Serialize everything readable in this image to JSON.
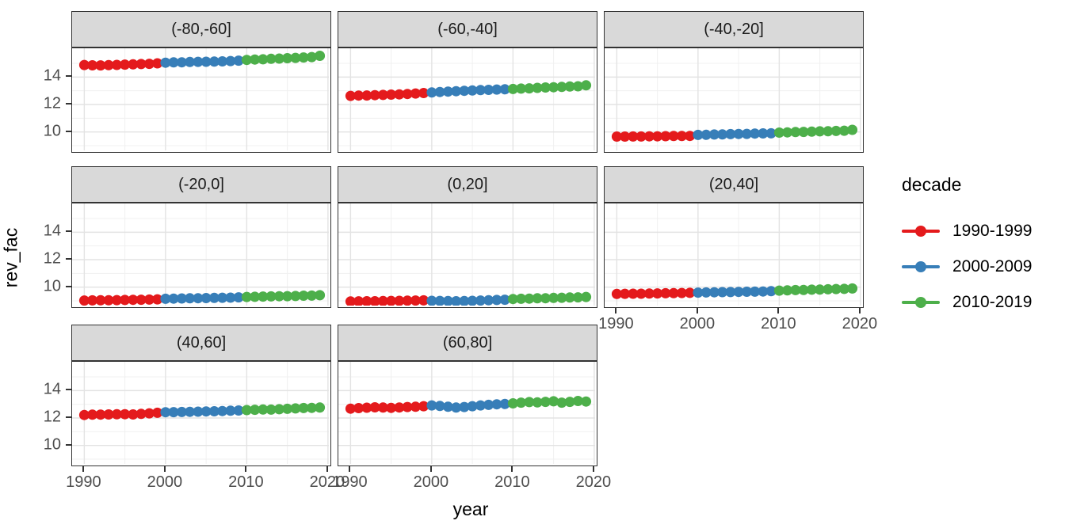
{
  "chart_data": {
    "type": "scatter",
    "title": "",
    "xlabel": "year",
    "ylabel": "rev_fac",
    "x_ticks": [
      1990,
      2000,
      2010,
      2020
    ],
    "y_ticks": [
      14,
      12,
      10
    ],
    "x_minor_ticks": [
      1995,
      2005,
      2015
    ],
    "y_minor_ticks": [
      9,
      11,
      13,
      15
    ],
    "xlim": [
      1988.5,
      2020.5
    ],
    "ylim": [
      8.42,
      16.1
    ],
    "grid": "on",
    "legend": {
      "title": "decade",
      "position": "right",
      "entries": [
        {
          "label": "1990-1999",
          "color": "#E41A1C"
        },
        {
          "label": "2000-2009",
          "color": "#377EB8"
        },
        {
          "label": "2010-2019",
          "color": "#4DAF4A"
        }
      ]
    },
    "years": [
      1990,
      1991,
      1992,
      1993,
      1994,
      1995,
      1996,
      1997,
      1998,
      1999,
      2000,
      2001,
      2002,
      2003,
      2004,
      2005,
      2006,
      2007,
      2008,
      2009,
      2010,
      2011,
      2012,
      2013,
      2014,
      2015,
      2016,
      2017,
      2018,
      2019
    ],
    "facets": [
      {
        "label": "(-80,-60]",
        "values": [
          14.88,
          14.86,
          14.85,
          14.87,
          14.89,
          14.91,
          14.93,
          14.95,
          14.97,
          15.0,
          15.05,
          15.07,
          15.08,
          15.1,
          15.11,
          15.12,
          15.13,
          15.15,
          15.17,
          15.2,
          15.25,
          15.28,
          15.3,
          15.33,
          15.35,
          15.38,
          15.4,
          15.43,
          15.46,
          15.55
        ]
      },
      {
        "label": "(-60,-40]",
        "values": [
          12.63,
          12.65,
          12.66,
          12.68,
          12.7,
          12.72,
          12.74,
          12.77,
          12.8,
          12.84,
          12.88,
          12.91,
          12.94,
          12.97,
          13.0,
          13.02,
          13.05,
          13.07,
          13.09,
          13.11,
          13.13,
          13.16,
          13.18,
          13.21,
          13.24,
          13.26,
          13.28,
          13.31,
          13.33,
          13.4
        ]
      },
      {
        "label": "(-40,-20]",
        "values": [
          9.66,
          9.66,
          9.67,
          9.67,
          9.68,
          9.68,
          9.69,
          9.7,
          9.7,
          9.71,
          9.78,
          9.79,
          9.81,
          9.82,
          9.84,
          9.85,
          9.86,
          9.88,
          9.89,
          9.9,
          9.95,
          9.97,
          9.99,
          10.0,
          10.02,
          10.04,
          10.05,
          10.07,
          10.09,
          10.15
        ]
      },
      {
        "label": "(-20,0]",
        "values": [
          9.02,
          9.03,
          9.04,
          9.04,
          9.05,
          9.06,
          9.07,
          9.08,
          9.09,
          9.11,
          9.15,
          9.16,
          9.17,
          9.18,
          9.19,
          9.2,
          9.21,
          9.22,
          9.23,
          9.25,
          9.28,
          9.29,
          9.31,
          9.32,
          9.33,
          9.34,
          9.35,
          9.37,
          9.38,
          9.41
        ]
      },
      {
        "label": "(0,20]",
        "values": [
          8.95,
          8.96,
          8.97,
          8.97,
          8.98,
          8.99,
          9.0,
          9.01,
          9.02,
          9.03,
          9.0,
          8.99,
          8.98,
          8.97,
          8.98,
          9.0,
          9.02,
          9.04,
          9.06,
          9.08,
          9.13,
          9.15,
          9.16,
          9.18,
          9.19,
          9.21,
          9.22,
          9.24,
          9.25,
          9.28
        ]
      },
      {
        "label": "(20,40]",
        "values": [
          9.5,
          9.51,
          9.52,
          9.52,
          9.53,
          9.54,
          9.55,
          9.56,
          9.57,
          9.58,
          9.6,
          9.61,
          9.62,
          9.63,
          9.64,
          9.65,
          9.66,
          9.67,
          9.68,
          9.7,
          9.74,
          9.76,
          9.78,
          9.79,
          9.81,
          9.82,
          9.84,
          9.86,
          9.87,
          9.9
        ]
      },
      {
        "label": "(40,60]",
        "values": [
          12.22,
          12.24,
          12.25,
          12.26,
          12.27,
          12.28,
          12.26,
          12.3,
          12.34,
          12.38,
          12.42,
          12.43,
          12.44,
          12.45,
          12.46,
          12.48,
          12.49,
          12.51,
          12.53,
          12.55,
          12.58,
          12.6,
          12.62,
          12.61,
          12.64,
          12.67,
          12.7,
          12.73,
          12.74,
          12.76
        ]
      },
      {
        "label": "(60,80]",
        "values": [
          12.68,
          12.72,
          12.75,
          12.78,
          12.76,
          12.74,
          12.77,
          12.8,
          12.82,
          12.86,
          12.92,
          12.88,
          12.82,
          12.76,
          12.8,
          12.86,
          12.92,
          12.96,
          13.0,
          13.02,
          13.07,
          13.12,
          13.16,
          13.14,
          13.18,
          13.22,
          13.12,
          13.18,
          13.24,
          13.2
        ]
      }
    ],
    "colors": {
      "strip_bg": "#D9D9D9",
      "panel_border": "#333333",
      "grid_major": "#E3E3E3",
      "grid_minor": "#F0F0F0",
      "tick_label": "#4D4D4D",
      "axis_title": "#000000",
      "background": "#FFFFFF"
    }
  }
}
